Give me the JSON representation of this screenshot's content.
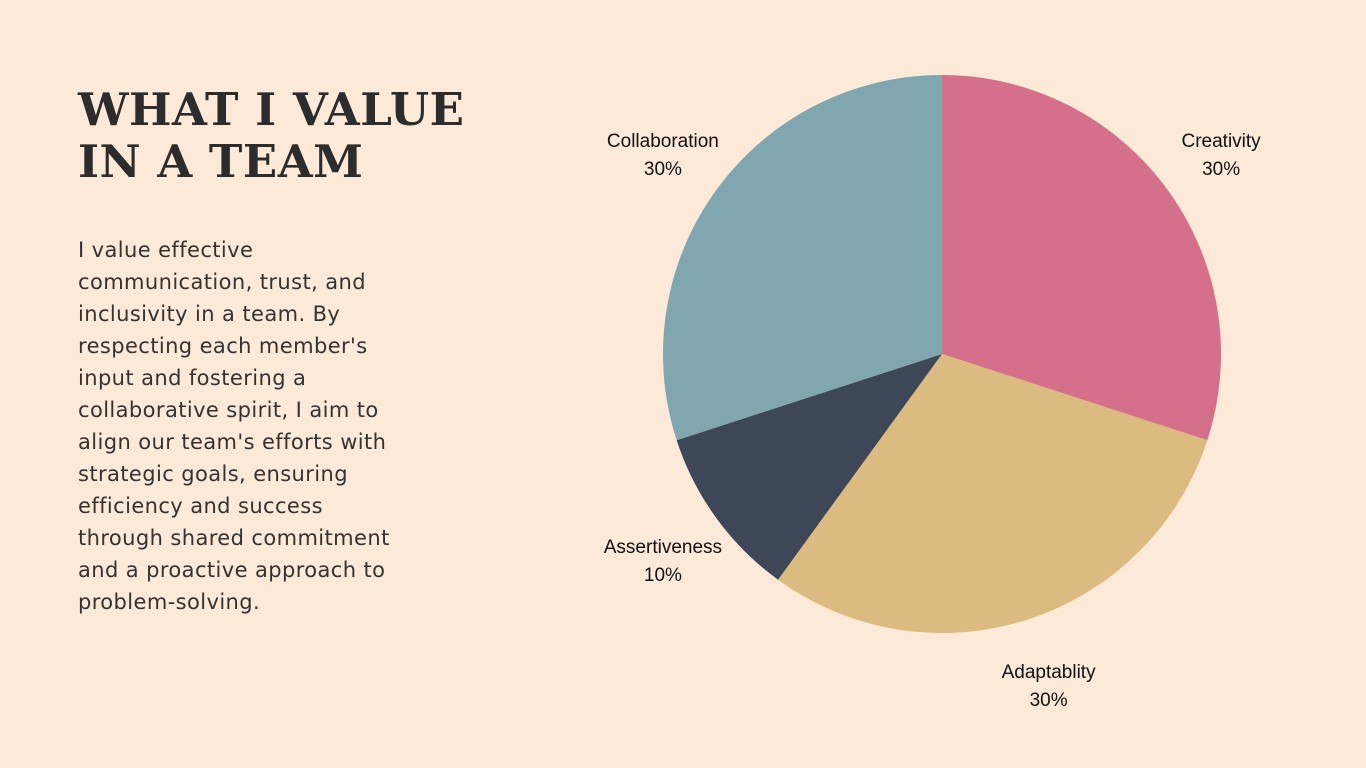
{
  "slide": {
    "title_lines": [
      "WHAT I VALUE",
      "IN A TEAM"
    ],
    "body_lines": [
      "I value effective",
      "communication, trust, and",
      "inclusivity in a team. By",
      "respecting each member's",
      "input and fostering a",
      "collaborative spirit, I aim to",
      "align our team's efforts with",
      "strategic goals, ensuring",
      "efficiency and success",
      "through shared commitment",
      "and a proactive approach to",
      "problem-solving."
    ]
  },
  "colors": {
    "background": "#fce9d8",
    "text": "#2c2c2c"
  },
  "chart_data": {
    "type": "pie",
    "start_angle_deg": 0,
    "direction": "clockwise",
    "slices": [
      {
        "label": "Creativity",
        "value": 30,
        "value_label": "30%",
        "color": "#d5708a"
      },
      {
        "label": "Adaptablity",
        "value": 30,
        "value_label": "30%",
        "color": "#dcbb80"
      },
      {
        "label": "Assertiveness",
        "value": 10,
        "value_label": "10%",
        "color": "#3d4758"
      },
      {
        "label": "Collaboration",
        "value": 30,
        "value_label": "30%",
        "color": "#80a6b0"
      }
    ]
  }
}
